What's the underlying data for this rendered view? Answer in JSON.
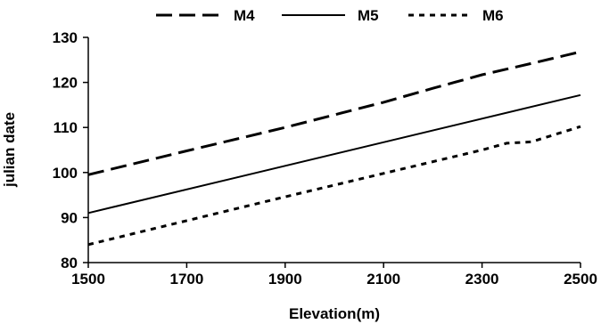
{
  "chart_data": {
    "type": "line",
    "title": "",
    "xlabel": "Elevation(m)",
    "ylabel": "julian date",
    "xlim": [
      1500,
      2500
    ],
    "ylim": [
      80,
      130
    ],
    "xticks": [
      "1500",
      "1700",
      "1900",
      "2100",
      "2300",
      "2500"
    ],
    "yticks": [
      "80",
      "90",
      "100",
      "110",
      "120",
      "130"
    ],
    "grid": false,
    "legend": "top",
    "series": [
      {
        "name": "M4",
        "style": "dashed",
        "x": [
          1500,
          1700,
          1900,
          2000,
          2100,
          2200,
          2300,
          2400,
          2500
        ],
        "y": [
          99.5,
          104.8,
          110,
          112.8,
          115.6,
          118.7,
          121.7,
          124.2,
          126.8
        ]
      },
      {
        "name": "M5",
        "style": "solid",
        "x": [
          1500,
          2500
        ],
        "y": [
          91,
          117.2
        ]
      },
      {
        "name": "M6",
        "style": "dotted",
        "x": [
          1500,
          1700,
          1900,
          2100,
          2300,
          2350,
          2400,
          2500
        ],
        "y": [
          84,
          89.3,
          94.6,
          99.8,
          105,
          106.5,
          106.8,
          110.2
        ]
      }
    ]
  }
}
